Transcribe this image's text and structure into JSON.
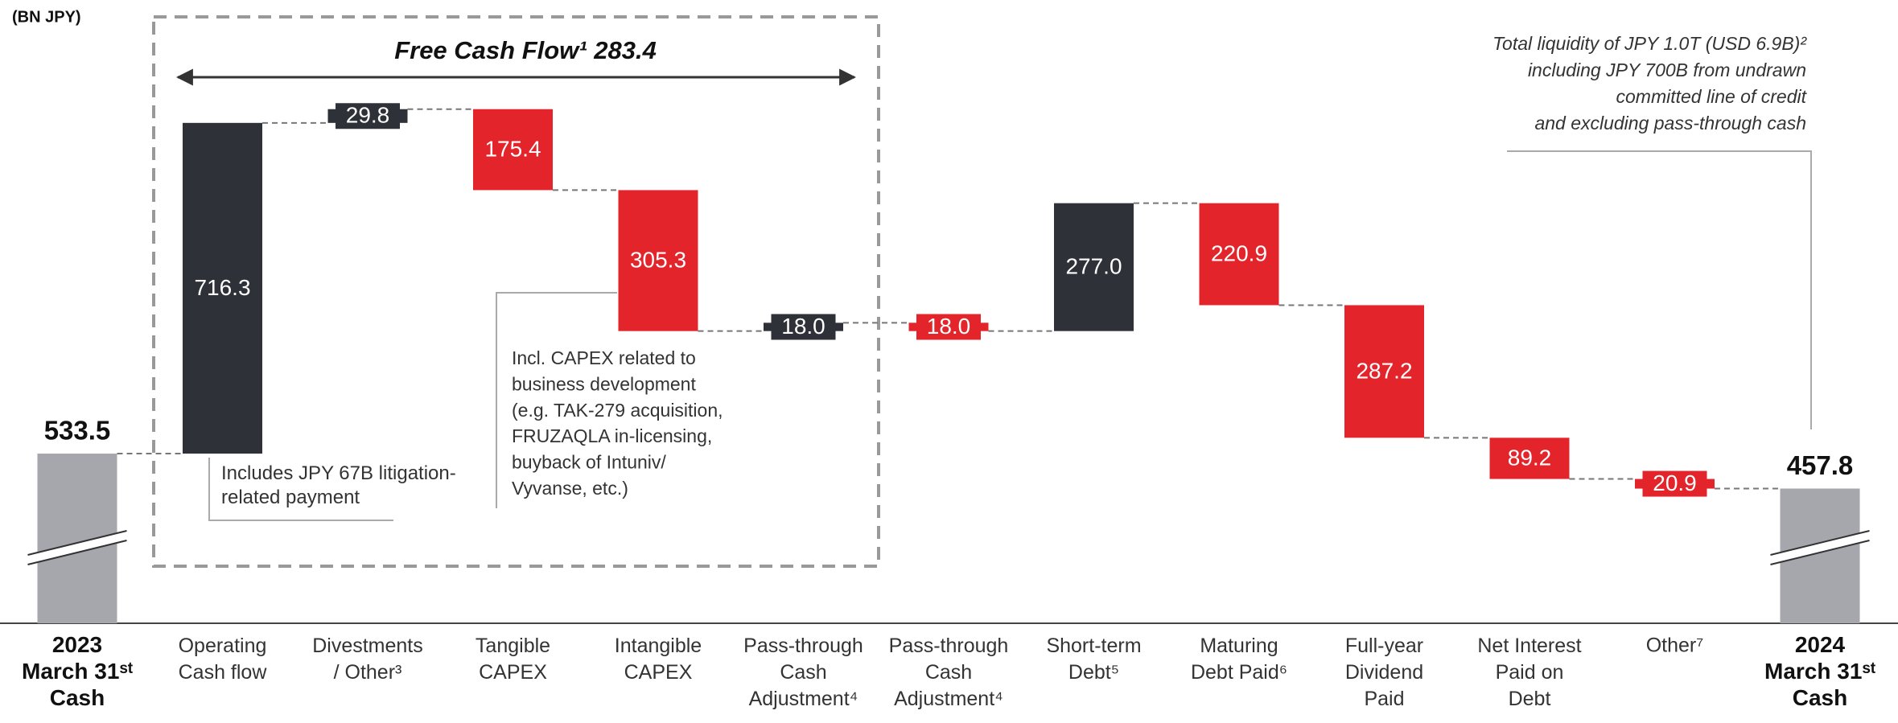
{
  "chart_data": {
    "type": "waterfall",
    "unit_label": "(BN JPY)",
    "categories": [
      "2023\nMarch 31ˢᵗ\nCash",
      "Operating\nCash flow",
      "Divestments\n/ Other³",
      "Tangible\nCAPEX",
      "Intangible\nCAPEX",
      "Pass-through\nCash\nAdjustment⁴",
      "Pass-through\nCash\nAdjustment⁴",
      "Short-term\nDebt⁵",
      "Maturing\nDebt Paid⁶",
      "Full-year\nDividend\nPaid",
      "Net Interest\nPaid on\nDebt",
      "Other⁷",
      "2024\nMarch 31ˢᵗ\nCash"
    ],
    "measure": [
      "total",
      "relative",
      "relative",
      "relative",
      "relative",
      "relative",
      "relative",
      "relative",
      "relative",
      "relative",
      "relative",
      "relative",
      "total"
    ],
    "values": [
      533.5,
      716.3,
      29.8,
      -175.4,
      -305.3,
      18.0,
      -18.0,
      277.0,
      -220.9,
      -287.2,
      -89.2,
      -20.9,
      457.8
    ],
    "value_labels": [
      "533.5",
      "716.3",
      "29.8",
      "175.4",
      "305.3",
      "18.0",
      "18.0",
      "277.0",
      "220.9",
      "287.2",
      "89.2",
      "20.9",
      "457.8"
    ],
    "colors": [
      "#a6a7ad",
      "#2f3138",
      "#2f3138",
      "#e3242b",
      "#e3242b",
      "#2f3138",
      "#e3242b",
      "#2f3138",
      "#e3242b",
      "#e3242b",
      "#e3242b",
      "#e3242b",
      "#a6a7ad"
    ],
    "ylim": [
      166,
      1516
    ],
    "annotations": {
      "free_cash_flow": "Free Cash Flow¹ 283.4",
      "liquidity": "Total liquidity of JPY 1.0T (USD 6.9B)²\nincluding JPY 700B from undrawn\ncommitted line of credit\nand excluding pass-through cash",
      "operating_note": "Includes JPY 67B litigation-\nrelated payment",
      "capex_note": "Incl. CAPEX related to\nbusiness development\n(e.g. TAK-279 acquisition,\nFRUZAQLA in-licensing,\nbuyback of Intuniv/\nVyvanse, etc.)"
    }
  }
}
